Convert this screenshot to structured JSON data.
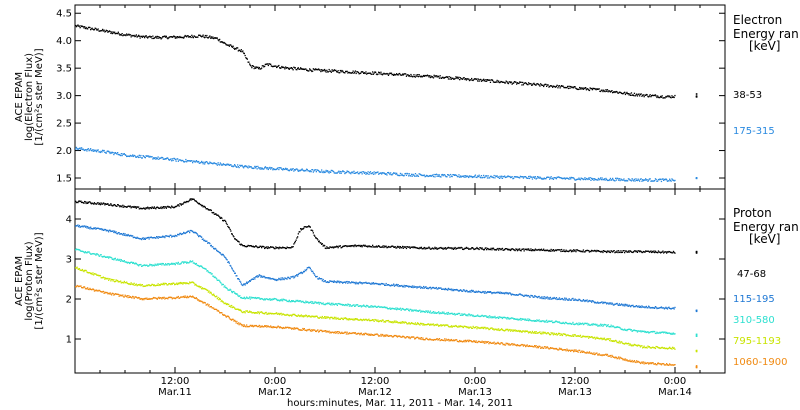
{
  "colors": {
    "black": "#000000",
    "blue": "#1f78d4",
    "cyan": "#2ee0d0",
    "yellow": "#c8e400",
    "orange": "#f08a12",
    "electron_blue": "#2a8ae0"
  },
  "xaxis": {
    "range_hours": [
      0,
      78
    ],
    "ticks": [
      {
        "hour": 12,
        "label": "12:00",
        "date": "Mar.11"
      },
      {
        "hour": 24,
        "label": "0:00",
        "date": "Mar.12"
      },
      {
        "hour": 36,
        "label": "12:00",
        "date": "Mar.12"
      },
      {
        "hour": 48,
        "label": "0:00",
        "date": "Mar.13"
      },
      {
        "hour": 60,
        "label": "12:00",
        "date": "Mar.13"
      },
      {
        "hour": 72,
        "label": "0:00",
        "date": "Mar.14"
      }
    ],
    "title": "hours:minutes, Mar. 11, 2011 - Mar. 14, 2011"
  },
  "electron_panel": {
    "ylabel_lines": [
      "ACE EPAM",
      "log(Electron Flux)",
      "[1/(cm²s ster MeV)]"
    ],
    "legend_title": [
      "Electron",
      "Energy ran",
      "[keV]"
    ],
    "legend_items": [
      {
        "label": "38-53",
        "color": "#000000"
      },
      {
        "label": "175-315",
        "color": "#2a8ae0"
      }
    ]
  },
  "proton_panel": {
    "ylabel_lines": [
      "ACE EPAM",
      "log(Proton Flux)",
      "[1/(cm²s ster MeV)]"
    ],
    "legend_title": [
      "Proton",
      "Energy ran",
      "[keV]"
    ],
    "legend_items": [
      {
        "label": "47-68",
        "color": "#000000"
      },
      {
        "label": "115-195",
        "color": "#1f78d4"
      },
      {
        "label": "310-580",
        "color": "#2ee0d0"
      },
      {
        "label": "795-1193",
        "color": "#c8e400"
      },
      {
        "label": "1060-1900",
        "color": "#f08a12"
      }
    ]
  },
  "chart_data": [
    {
      "type": "scatter",
      "panel": "electron",
      "ylabel": "ACE EPAM log(Electron Flux) [1/(cm²s ster MeV)]",
      "ylim": [
        1.3,
        4.65
      ],
      "yticks": [
        1.5,
        2.0,
        2.5,
        3.0,
        3.5,
        4.0,
        4.5
      ],
      "xlim_hours": [
        0,
        78
      ],
      "series": [
        {
          "name": "38-53",
          "color": "#000000",
          "points": [
            [
              0,
              4.28
            ],
            [
              3,
              4.2
            ],
            [
              6,
              4.12
            ],
            [
              8,
              4.08
            ],
            [
              10,
              4.07
            ],
            [
              13,
              4.08
            ],
            [
              15,
              4.1
            ],
            [
              17,
              4.05
            ],
            [
              18,
              3.95
            ],
            [
              20,
              3.82
            ],
            [
              21,
              3.55
            ],
            [
              22,
              3.5
            ],
            [
              23,
              3.58
            ],
            [
              25,
              3.52
            ],
            [
              28,
              3.48
            ],
            [
              32,
              3.45
            ],
            [
              36,
              3.42
            ],
            [
              40,
              3.38
            ],
            [
              44,
              3.35
            ],
            [
              48,
              3.3
            ],
            [
              52,
              3.25
            ],
            [
              56,
              3.2
            ],
            [
              60,
              3.15
            ],
            [
              64,
              3.1
            ],
            [
              66,
              3.05
            ],
            [
              68,
              3.02
            ],
            [
              70,
              3.0
            ],
            [
              71,
              2.99
            ],
            [
              72,
              3.0
            ]
          ],
          "extra_points": [
            [
              74.5,
              3.02
            ]
          ]
        },
        {
          "name": "175-315",
          "color": "#2a8ae0",
          "points": [
            [
              0,
              2.05
            ],
            [
              3,
              2.0
            ],
            [
              6,
              1.93
            ],
            [
              10,
              1.87
            ],
            [
              15,
              1.8
            ],
            [
              20,
              1.72
            ],
            [
              25,
              1.67
            ],
            [
              30,
              1.63
            ],
            [
              36,
              1.6
            ],
            [
              42,
              1.56
            ],
            [
              48,
              1.54
            ],
            [
              54,
              1.52
            ],
            [
              60,
              1.5
            ],
            [
              66,
              1.48
            ],
            [
              72,
              1.47
            ]
          ],
          "extra_points": [
            [
              74.5,
              1.5
            ]
          ]
        }
      ]
    },
    {
      "type": "scatter",
      "panel": "proton",
      "ylabel": "ACE EPAM log(Proton Flux) [1/(cm²s ster MeV)]",
      "ylim": [
        0.15,
        4.75
      ],
      "yticks": [
        1,
        2,
        3,
        4
      ],
      "xlim_hours": [
        0,
        78
      ],
      "series": [
        {
          "name": "47-68",
          "color": "#000000",
          "points": [
            [
              0,
              4.45
            ],
            [
              4,
              4.38
            ],
            [
              8,
              4.28
            ],
            [
              12,
              4.32
            ],
            [
              14,
              4.52
            ],
            [
              16,
              4.25
            ],
            [
              18,
              3.95
            ],
            [
              19,
              3.55
            ],
            [
              20,
              3.35
            ],
            [
              23,
              3.3
            ],
            [
              26,
              3.3
            ],
            [
              27,
              3.75
            ],
            [
              28,
              3.85
            ],
            [
              29,
              3.5
            ],
            [
              30,
              3.3
            ],
            [
              34,
              3.35
            ],
            [
              40,
              3.3
            ],
            [
              44,
              3.28
            ],
            [
              48,
              3.28
            ],
            [
              52,
              3.25
            ],
            [
              56,
              3.24
            ],
            [
              60,
              3.22
            ],
            [
              64,
              3.2
            ],
            [
              68,
              3.2
            ],
            [
              72,
              3.18
            ]
          ],
          "extra_points": [
            [
              74.5,
              3.18
            ]
          ]
        },
        {
          "name": "115-195",
          "color": "#1f78d4",
          "points": [
            [
              0,
              3.85
            ],
            [
              4,
              3.72
            ],
            [
              8,
              3.52
            ],
            [
              12,
              3.6
            ],
            [
              14,
              3.72
            ],
            [
              16,
              3.4
            ],
            [
              18,
              3.05
            ],
            [
              19,
              2.7
            ],
            [
              20,
              2.35
            ],
            [
              22,
              2.6
            ],
            [
              24,
              2.5
            ],
            [
              26,
              2.55
            ],
            [
              27,
              2.65
            ],
            [
              28,
              2.8
            ],
            [
              29,
              2.55
            ],
            [
              30,
              2.45
            ],
            [
              36,
              2.4
            ],
            [
              42,
              2.3
            ],
            [
              48,
              2.2
            ],
            [
              52,
              2.15
            ],
            [
              56,
              2.05
            ],
            [
              60,
              2.0
            ],
            [
              64,
              1.9
            ],
            [
              68,
              1.82
            ],
            [
              72,
              1.78
            ]
          ],
          "extra_points": [
            [
              74.5,
              1.72
            ]
          ]
        },
        {
          "name": "310-580",
          "color": "#2ee0d0",
          "points": [
            [
              0,
              3.25
            ],
            [
              4,
              3.05
            ],
            [
              8,
              2.85
            ],
            [
              12,
              2.9
            ],
            [
              14,
              2.95
            ],
            [
              16,
              2.7
            ],
            [
              18,
              2.3
            ],
            [
              20,
              2.05
            ],
            [
              24,
              2.0
            ],
            [
              30,
              1.9
            ],
            [
              36,
              1.82
            ],
            [
              42,
              1.7
            ],
            [
              48,
              1.6
            ],
            [
              54,
              1.5
            ],
            [
              60,
              1.4
            ],
            [
              64,
              1.35
            ],
            [
              66,
              1.25
            ],
            [
              68,
              1.2
            ],
            [
              72,
              1.15
            ]
          ],
          "extra_points": [
            [
              74.5,
              1.12
            ]
          ]
        },
        {
          "name": "795-1193",
          "color": "#c8e400",
          "points": [
            [
              0,
              2.8
            ],
            [
              4,
              2.5
            ],
            [
              8,
              2.35
            ],
            [
              12,
              2.4
            ],
            [
              14,
              2.42
            ],
            [
              16,
              2.2
            ],
            [
              18,
              1.9
            ],
            [
              20,
              1.7
            ],
            [
              24,
              1.65
            ],
            [
              30,
              1.55
            ],
            [
              36,
              1.48
            ],
            [
              42,
              1.38
            ],
            [
              48,
              1.3
            ],
            [
              54,
              1.2
            ],
            [
              60,
              1.1
            ],
            [
              64,
              1.0
            ],
            [
              66,
              0.9
            ],
            [
              68,
              0.82
            ],
            [
              72,
              0.78
            ]
          ],
          "extra_points": [
            [
              74.5,
              0.72
            ]
          ]
        },
        {
          "name": "1060-1900",
          "color": "#f08a12",
          "points": [
            [
              0,
              2.35
            ],
            [
              4,
              2.15
            ],
            [
              8,
              2.02
            ],
            [
              12,
              2.05
            ],
            [
              14,
              2.08
            ],
            [
              16,
              1.85
            ],
            [
              18,
              1.6
            ],
            [
              20,
              1.35
            ],
            [
              24,
              1.32
            ],
            [
              30,
              1.2
            ],
            [
              36,
              1.12
            ],
            [
              42,
              1.02
            ],
            [
              48,
              0.95
            ],
            [
              54,
              0.85
            ],
            [
              60,
              0.72
            ],
            [
              64,
              0.6
            ],
            [
              66,
              0.5
            ],
            [
              68,
              0.42
            ],
            [
              72,
              0.36
            ]
          ],
          "extra_points": [
            [
              74.5,
              0.32
            ]
          ]
        }
      ]
    }
  ]
}
